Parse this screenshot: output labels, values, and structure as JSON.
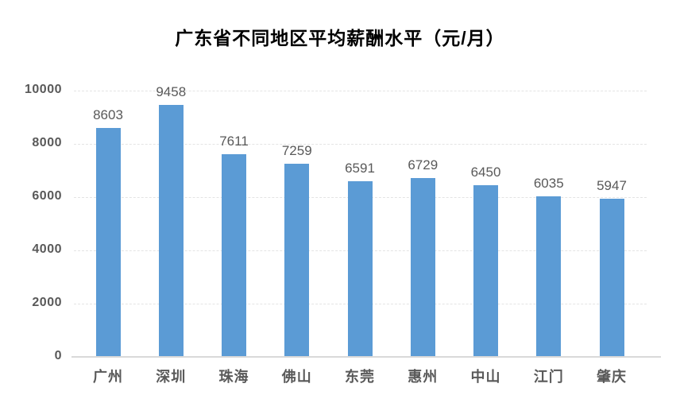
{
  "title": "广东省不同地区平均薪酬水平（元/月）",
  "colors": {
    "bar": "#5b9bd5",
    "gridline": "#e4e4e4",
    "axis_line": "#d9d9d9",
    "label_text": "#595959",
    "title_text": "#000000",
    "background": "#ffffff"
  },
  "chart_data": {
    "type": "bar",
    "title": "广东省不同地区平均薪酬水平（元/月）",
    "categories": [
      "广州",
      "深圳",
      "珠海",
      "佛山",
      "东莞",
      "惠州",
      "中山",
      "江门",
      "肇庆"
    ],
    "values": [
      8603,
      9458,
      7611,
      7259,
      6591,
      6729,
      6450,
      6035,
      5947
    ],
    "data_labels": [
      8603,
      9458,
      7611,
      7259,
      6591,
      6729,
      6450,
      6035,
      5947
    ],
    "xlabel": "",
    "ylabel": "",
    "ylim": [
      0,
      10000
    ],
    "yticks": [
      0,
      2000,
      4000,
      6000,
      8000,
      10000
    ],
    "grid": "horizontal-dashed",
    "legend": "none",
    "bar_color": "#5b9bd5"
  }
}
